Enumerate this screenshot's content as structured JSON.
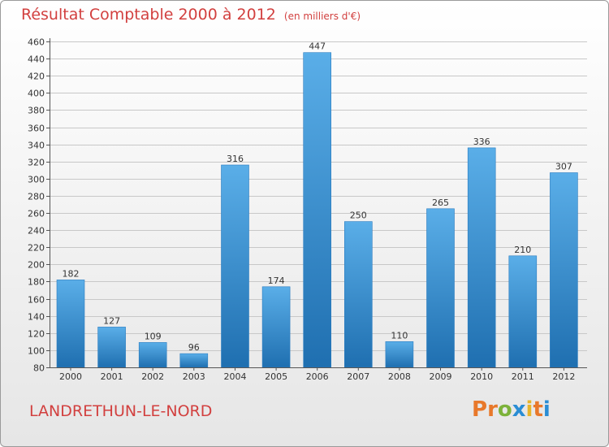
{
  "header": {
    "title": "Résultat Comptable 2000 à 2012",
    "unit": "(en milliers d'€)"
  },
  "footer": {
    "town": "LANDRETHUN-LE-NORD",
    "logo": "Proxiti"
  },
  "colors": {
    "accent": "#d2403f",
    "bar_top": "#5aaee8",
    "bar_bottom": "#1f6fb0",
    "grid": "#c8c8c8",
    "logo_letters": [
      "#e8782a",
      "#e8782a",
      "#7cb23a",
      "#2a8dd4",
      "#e8b52a",
      "#e8782a",
      "#2a8dd4"
    ]
  },
  "chart_data": {
    "type": "bar",
    "title": "Résultat Comptable 2000 à 2012",
    "ylabel": "en milliers d'€",
    "xlabel": "",
    "ylim": [
      80,
      460
    ],
    "ytick_step": 20,
    "grid": true,
    "categories": [
      "2000",
      "2001",
      "2002",
      "2003",
      "2004",
      "2005",
      "2006",
      "2007",
      "2008",
      "2009",
      "2010",
      "2011",
      "2012"
    ],
    "values": [
      182,
      127,
      109,
      96,
      316,
      174,
      447,
      250,
      110,
      265,
      336,
      210,
      307
    ]
  }
}
